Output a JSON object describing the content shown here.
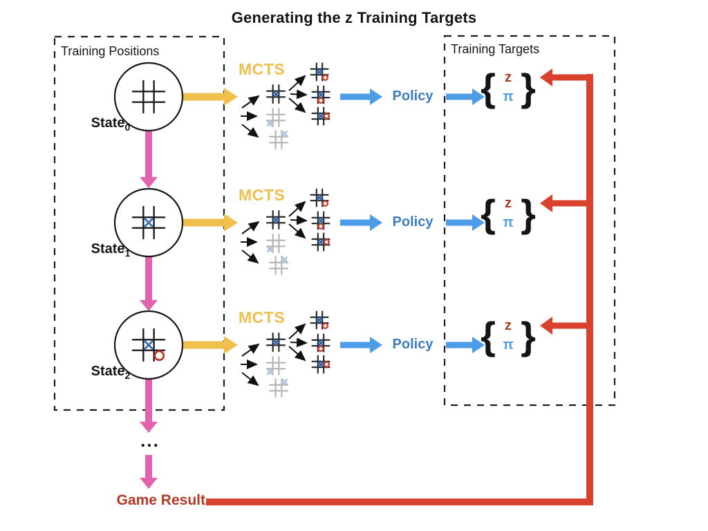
{
  "title": "Generating the z Training Targets",
  "left_box": {
    "label": "Training Positions"
  },
  "right_box": {
    "label": "Training Targets"
  },
  "rows": [
    {
      "state_label": "State",
      "state_sub": "0",
      "mcts_label": "MCTS",
      "policy_label": "Policy",
      "z": "z",
      "pi": "π",
      "brace_open": "{",
      "brace_close": "}"
    },
    {
      "state_label": "State",
      "state_sub": "1",
      "mcts_label": "MCTS",
      "policy_label": "Policy",
      "z": "z",
      "pi": "π",
      "brace_open": "{",
      "brace_close": "}"
    },
    {
      "state_label": "State",
      "state_sub": "2",
      "mcts_label": "MCTS",
      "policy_label": "Policy",
      "z": "z",
      "pi": "π",
      "brace_open": "{",
      "brace_close": "}"
    }
  ],
  "states": [
    {
      "marks": []
    },
    {
      "marks": [
        {
          "t": "X",
          "r": 1,
          "c": 1
        }
      ]
    },
    {
      "marks": [
        {
          "t": "X",
          "r": 1,
          "c": 1
        },
        {
          "t": "O",
          "r": 2,
          "c": 2
        }
      ]
    }
  ],
  "mcts_tree": {
    "level1": [
      {
        "faded": false,
        "marks": [
          {
            "t": "X",
            "r": 1,
            "c": 1
          }
        ]
      },
      {
        "faded": true,
        "marks": [
          {
            "t": "X",
            "r": 2,
            "c": 0
          }
        ]
      },
      {
        "faded": true,
        "marks": [
          {
            "t": "X",
            "r": 0,
            "c": 2
          }
        ]
      }
    ],
    "level2": [
      {
        "faded": false,
        "marks": [
          {
            "t": "X",
            "r": 1,
            "c": 1
          },
          {
            "t": "O",
            "r": 2,
            "c": 2
          }
        ]
      },
      {
        "faded": false,
        "marks": [
          {
            "t": "X",
            "r": 1,
            "c": 1
          },
          {
            "t": "O",
            "r": 2,
            "c": 1
          }
        ]
      },
      {
        "faded": false,
        "marks": [
          {
            "t": "X",
            "r": 1,
            "c": 1
          },
          {
            "t": "O",
            "r": 1,
            "c": 2
          }
        ]
      }
    ]
  },
  "ellipsis": "...",
  "game_result": {
    "label": "Game Result"
  },
  "colors": {
    "gold": "#F0C04F",
    "pink": "#E263AD",
    "arrow_blue": "#4D9CE8",
    "policy_blue": "#3E7CC2",
    "red": "#D9432E",
    "z_red": "#A63D22",
    "pi_blue": "#4D9CE8",
    "game_result_red": "#B23A26",
    "text_black": "#141414",
    "x_blue": "#3A70B2",
    "o_red": "#B5382A",
    "tree_x_blue": "#2E64A8",
    "tree_o_red": "#C5402F",
    "faded_grid": "#B3B3B3",
    "faded_x": "#A8C0DE",
    "grid_black": "#1D1D1D"
  }
}
